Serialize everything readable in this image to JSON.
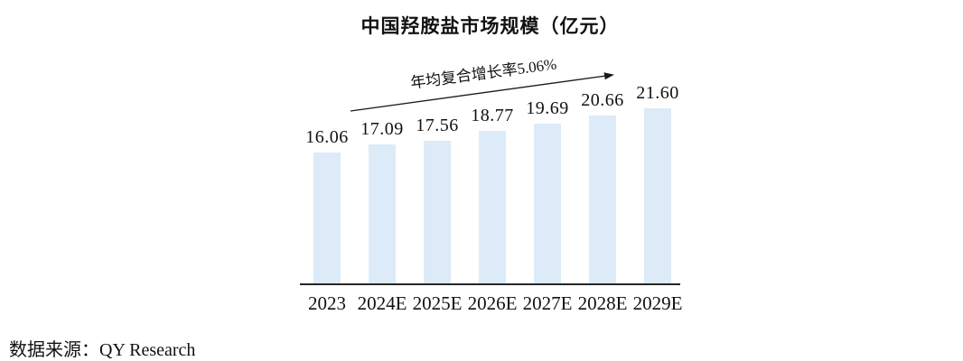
{
  "chart_data": {
    "type": "bar",
    "title": "中国羟胺盐市场规模（亿元）",
    "annotation": "年均复合增长率5.06%",
    "categories": [
      "2023",
      "2024E",
      "2025E",
      "2026E",
      "2027E",
      "2028E",
      "2029E"
    ],
    "values": [
      16.06,
      17.09,
      17.56,
      18.77,
      19.69,
      20.66,
      21.6
    ],
    "value_labels": [
      "16.06",
      "17.09",
      "17.56",
      "18.77",
      "19.69",
      "20.66",
      "21.60"
    ],
    "ylim": [
      0,
      24
    ],
    "grid": false,
    "legend": null,
    "bar_color": "#DCEBF7",
    "axis_color": "#262626",
    "arrow_color": "#1A1A1A",
    "text_color": "#111111"
  },
  "source": {
    "label": "数据来源：QY Research"
  }
}
